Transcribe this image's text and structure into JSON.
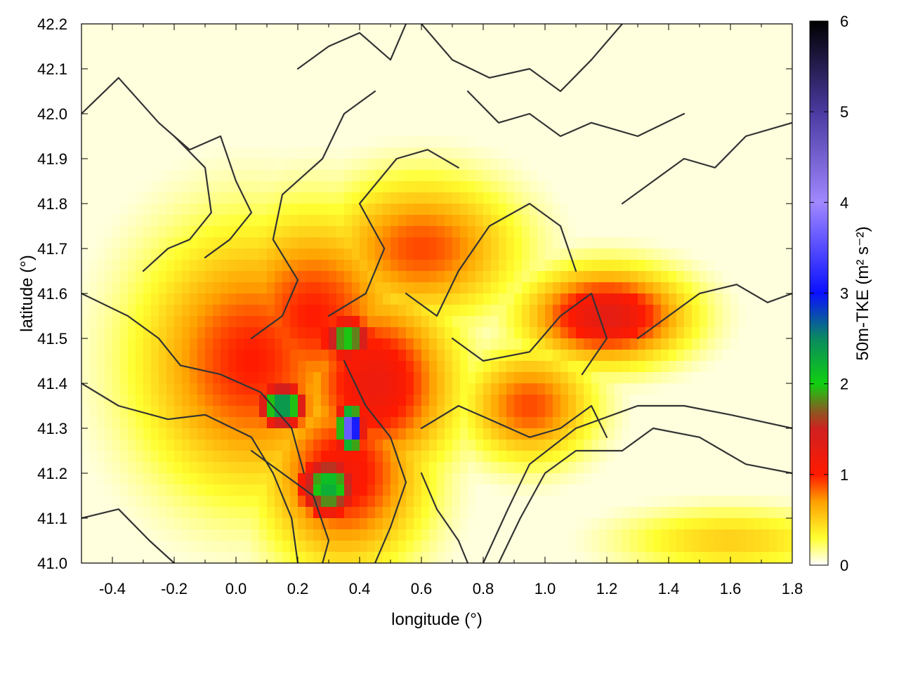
{
  "chart_data": {
    "type": "heatmap",
    "title": "",
    "xlabel": "longitude (°)",
    "ylabel": "latitude (°)",
    "xlim": [
      -0.5,
      1.8
    ],
    "ylim": [
      41.0,
      42.2
    ],
    "x_ticks": [
      -0.4,
      -0.2,
      0.0,
      0.2,
      0.4,
      0.6,
      0.8,
      1.0,
      1.2,
      1.4,
      1.6,
      1.8
    ],
    "x_tick_labels": [
      "-0.4",
      "-0.2",
      "0.0",
      "0.2",
      "0.4",
      "0.6",
      "0.8",
      "1.0",
      "1.2",
      "1.4",
      "1.6",
      "1.8"
    ],
    "y_ticks": [
      41.0,
      41.1,
      41.2,
      41.3,
      41.4,
      41.5,
      41.6,
      41.7,
      41.8,
      41.9,
      42.0,
      42.1,
      42.2
    ],
    "y_tick_labels": [
      "41.0",
      "41.1",
      "41.2",
      "41.3",
      "41.4",
      "41.5",
      "41.6",
      "41.7",
      "41.8",
      "41.9",
      "42.0",
      "42.1",
      "42.2"
    ],
    "grid": false,
    "colorbar": {
      "label": "50m-TKE (m² s⁻²)",
      "range": [
        0,
        6
      ],
      "ticks": [
        0,
        1,
        2,
        3,
        4,
        5,
        6
      ],
      "tick_labels": [
        "0",
        "1",
        "2",
        "3",
        "4",
        "5",
        "6"
      ],
      "stops": [
        {
          "value": 0.0,
          "color": "#ffffff"
        },
        {
          "value": 0.3,
          "color": "#ffff30"
        },
        {
          "value": 0.7,
          "color": "#ffa000"
        },
        {
          "value": 1.0,
          "color": "#ff1a00"
        },
        {
          "value": 1.5,
          "color": "#d02020"
        },
        {
          "value": 1.7,
          "color": "#8a5a20"
        },
        {
          "value": 2.0,
          "color": "#10d010"
        },
        {
          "value": 2.5,
          "color": "#0a8a60"
        },
        {
          "value": 3.0,
          "color": "#0a10ff"
        },
        {
          "value": 4.0,
          "color": "#a088ff"
        },
        {
          "value": 5.0,
          "color": "#4a3aa0"
        },
        {
          "value": 6.0,
          "color": "#000000"
        }
      ]
    },
    "field_features": [
      {
        "lon": 0.05,
        "lat": 41.45,
        "r_lon": 0.35,
        "r_lat": 0.28,
        "tke": 1.0
      },
      {
        "lon": 0.25,
        "lat": 41.55,
        "r_lon": 0.3,
        "r_lat": 0.22,
        "tke": 1.0
      },
      {
        "lon": 0.45,
        "lat": 41.4,
        "r_lon": 0.25,
        "r_lat": 0.2,
        "tke": 1.2
      },
      {
        "lon": 0.35,
        "lat": 41.2,
        "r_lon": 0.25,
        "r_lat": 0.2,
        "tke": 1.1
      },
      {
        "lon": 0.6,
        "lat": 41.7,
        "r_lon": 0.3,
        "r_lat": 0.15,
        "tke": 0.9
      },
      {
        "lon": 1.2,
        "lat": 41.55,
        "r_lon": 0.25,
        "r_lat": 0.1,
        "tke": 1.3
      },
      {
        "lon": 0.95,
        "lat": 41.35,
        "r_lon": 0.2,
        "r_lat": 0.12,
        "tke": 0.9
      },
      {
        "lon": 0.36,
        "lat": 41.5,
        "r_lon": 0.09,
        "r_lat": 0.05,
        "tke": 2.1
      },
      {
        "lon": 0.3,
        "lat": 41.17,
        "r_lon": 0.1,
        "r_lat": 0.07,
        "tke": 2.3
      },
      {
        "lon": 0.15,
        "lat": 41.35,
        "r_lon": 0.08,
        "r_lat": 0.05,
        "tke": 2.6
      },
      {
        "lon": 0.37,
        "lat": 41.3,
        "r_lon": 0.04,
        "r_lat": 0.05,
        "tke": 4.0
      },
      {
        "lon": 1.6,
        "lat": 41.05,
        "r_lon": 0.35,
        "r_lat": 0.07,
        "tke": 0.5
      }
    ]
  }
}
